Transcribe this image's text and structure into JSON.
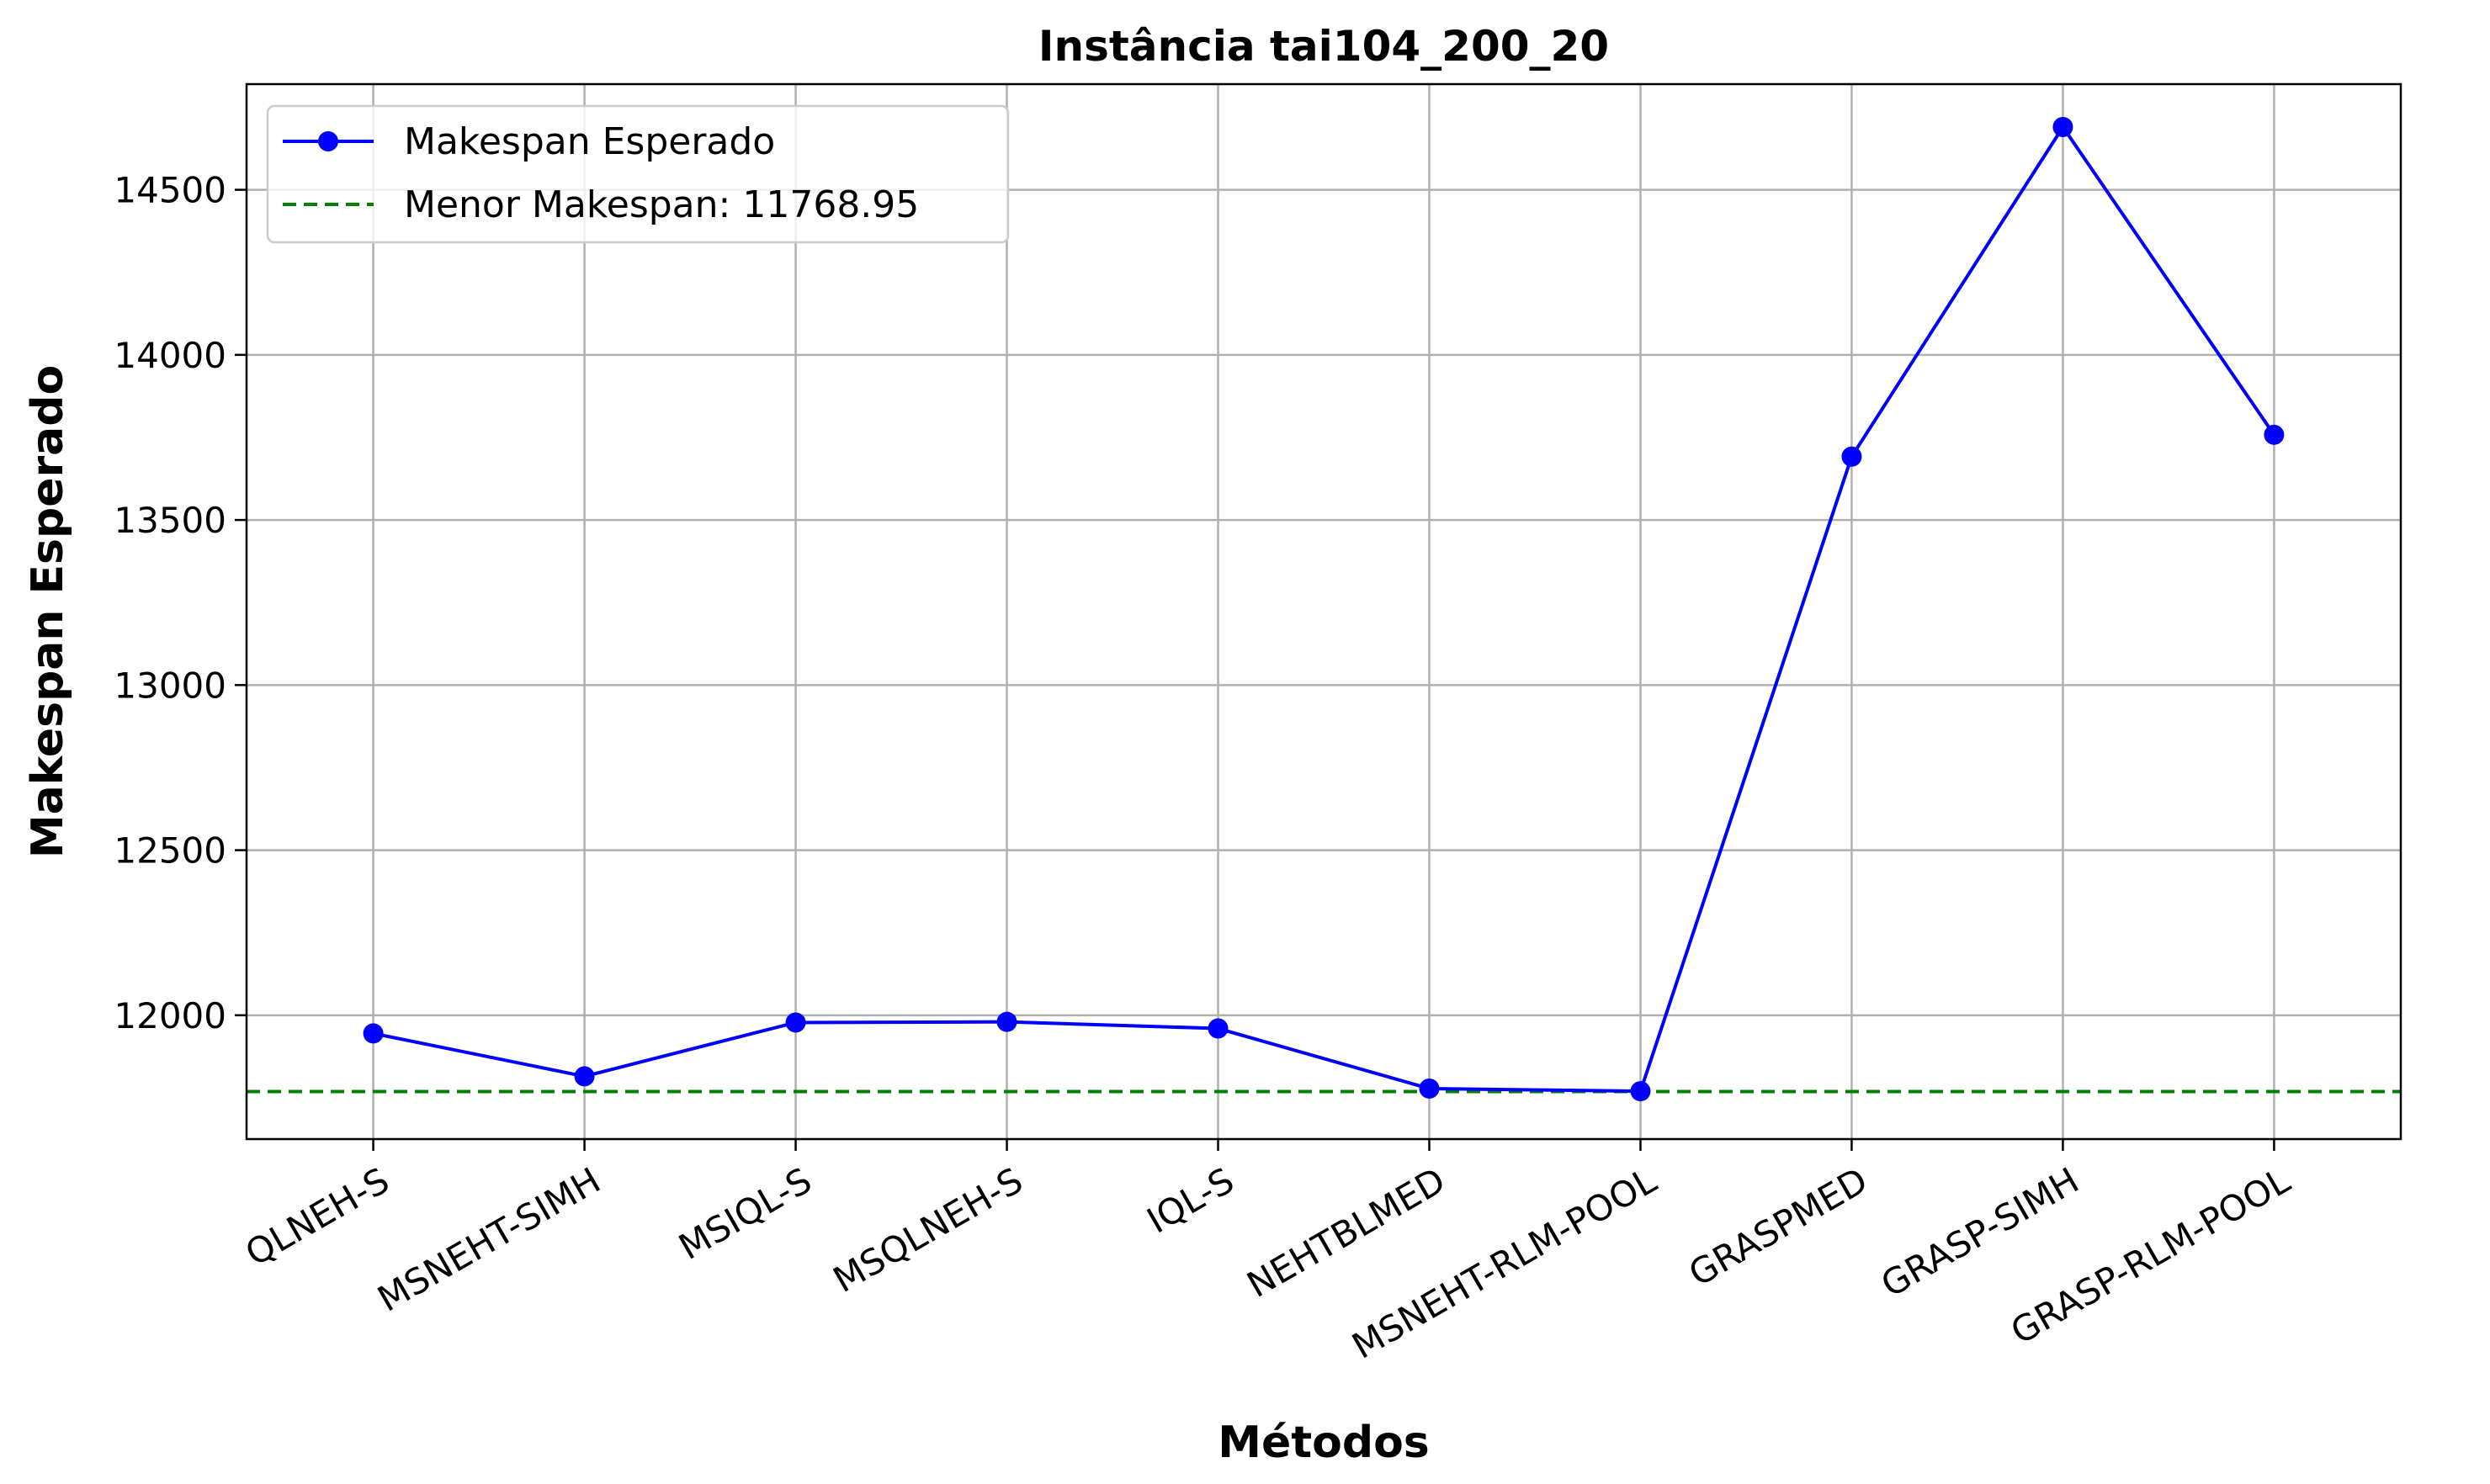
{
  "chart_data": {
    "type": "line",
    "title": "Instância tai104_200_20",
    "xlabel": "Métodos",
    "ylabel": "Makespan Esperado",
    "categories": [
      "QLNEH-S",
      "MSNEHT-SIMH",
      "MSIQL-S",
      "MSQLNEH-S",
      "IQL-S",
      "NEHTBLMED",
      "MSNEHT-RLM-POOL",
      "GRASPMED",
      "GRASP-SIMH",
      "GRASP-RLM-POOL"
    ],
    "series": [
      {
        "name": "Makespan Esperado",
        "color": "#0000ff",
        "marker": "circle",
        "values": [
          11945,
          11815,
          11978,
          11980,
          11960,
          11778,
          11770,
          13692,
          14690,
          13758
        ]
      }
    ],
    "reference_line": {
      "label": "Menor Makespan: 11768.95",
      "value": 11768.95,
      "color": "#008000",
      "style": "dashed"
    },
    "yticks": [
      12000,
      12500,
      13000,
      13500,
      14000,
      14500
    ],
    "ylim": [
      11625,
      14820
    ],
    "grid": true,
    "legend_position": "top-left",
    "tick_rotation": -30
  }
}
